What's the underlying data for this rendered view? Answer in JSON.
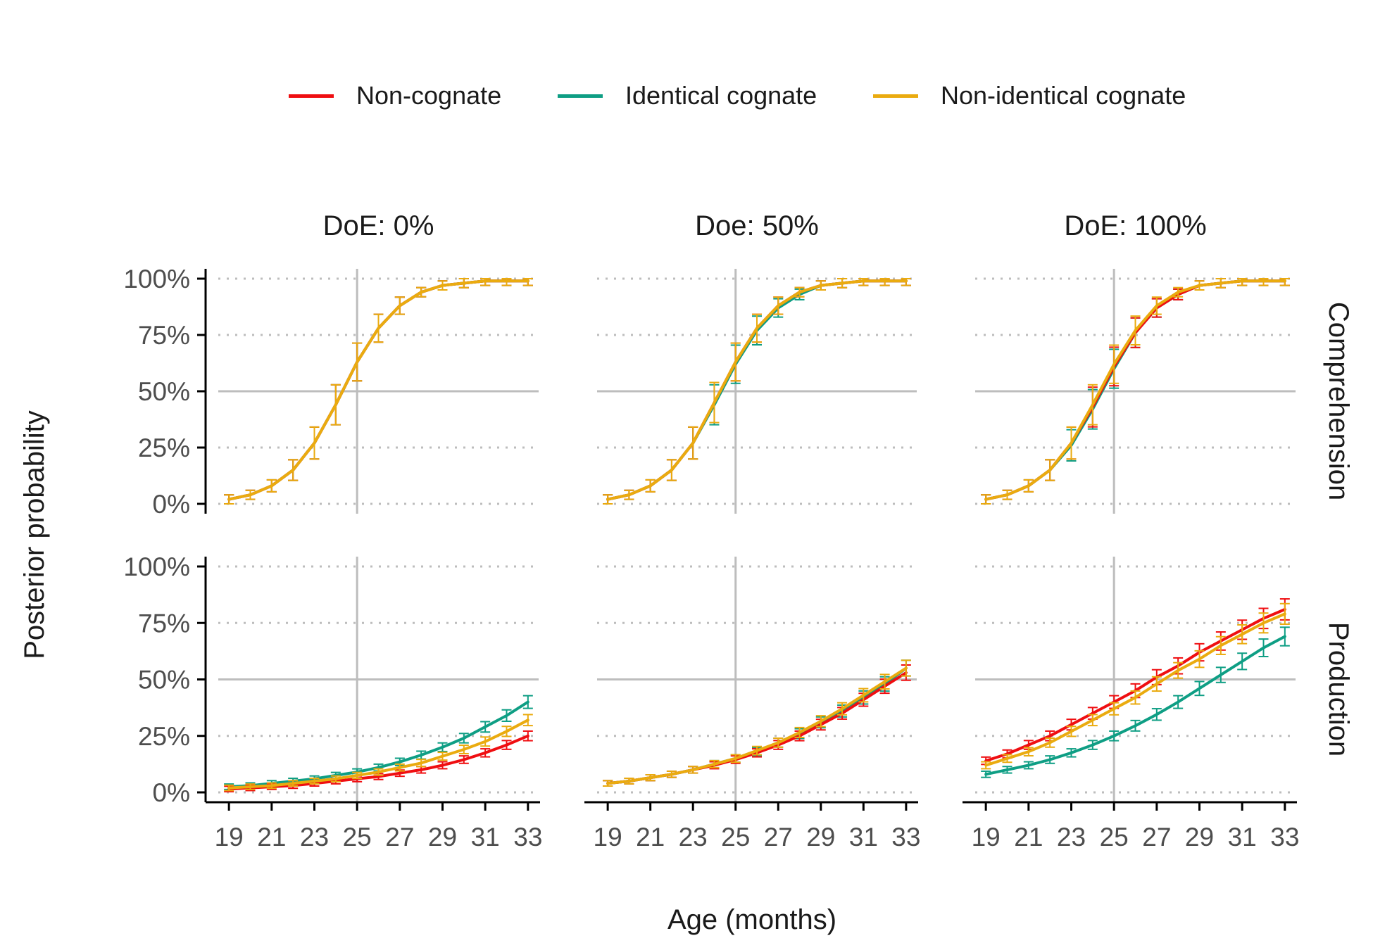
{
  "chart_data": {
    "type": "line",
    "legend": [
      {
        "key": "noncognate",
        "name": "Non-cognate",
        "color": "#ef0e11"
      },
      {
        "key": "identical",
        "name": "Identical cognate",
        "color": "#0e9e84"
      },
      {
        "key": "nonidentical",
        "name": "Non-identical cognate",
        "color": "#eaab0f"
      }
    ],
    "legend_placement": "top",
    "xlabel": "Age (months)",
    "ylabel": "Posterior probability",
    "x_ticks": [
      19,
      21,
      23,
      25,
      27,
      29,
      31,
      33
    ],
    "y_ticks": [
      "0%",
      "25%",
      "50%",
      "75%",
      "100%"
    ],
    "xlim": [
      18.5,
      33.5
    ],
    "ylim": [
      0,
      1
    ],
    "reference_lines": {
      "x": 25,
      "y": 0.5
    },
    "columns": [
      "DoE: 0%",
      "Doe: 50%",
      "DoE: 100%"
    ],
    "rows": [
      "Comprehension",
      "Production"
    ],
    "x": [
      19,
      20,
      21,
      22,
      23,
      24,
      25,
      26,
      27,
      28,
      29,
      30,
      31,
      32,
      33
    ],
    "panels": [
      {
        "column": "DoE: 0%",
        "row": "Comprehension",
        "series": [
          {
            "key": "noncognate",
            "values": [
              0.02,
              0.04,
              0.08,
              0.15,
              0.27,
              0.44,
              0.63,
              0.78,
              0.88,
              0.94,
              0.97,
              0.98,
              0.99,
              0.99,
              0.99
            ]
          },
          {
            "key": "identical",
            "values": [
              0.02,
              0.04,
              0.08,
              0.15,
              0.27,
              0.44,
              0.63,
              0.78,
              0.88,
              0.94,
              0.97,
              0.98,
              0.99,
              0.99,
              0.99
            ]
          },
          {
            "key": "nonidentical",
            "values": [
              0.02,
              0.04,
              0.08,
              0.15,
              0.27,
              0.44,
              0.63,
              0.78,
              0.88,
              0.94,
              0.97,
              0.98,
              0.99,
              0.99,
              0.99
            ]
          }
        ]
      },
      {
        "column": "Doe: 50%",
        "row": "Comprehension",
        "series": [
          {
            "key": "noncognate",
            "values": [
              0.02,
              0.04,
              0.08,
              0.15,
              0.27,
              0.45,
              0.63,
              0.78,
              0.88,
              0.94,
              0.97,
              0.98,
              0.99,
              0.99,
              0.99
            ]
          },
          {
            "key": "identical",
            "values": [
              0.02,
              0.04,
              0.08,
              0.15,
              0.27,
              0.44,
              0.62,
              0.77,
              0.87,
              0.93,
              0.97,
              0.98,
              0.99,
              0.99,
              0.99
            ]
          },
          {
            "key": "nonidentical",
            "values": [
              0.02,
              0.04,
              0.08,
              0.15,
              0.27,
              0.45,
              0.63,
              0.78,
              0.88,
              0.94,
              0.97,
              0.98,
              0.99,
              0.99,
              0.99
            ]
          }
        ]
      },
      {
        "column": "DoE: 100%",
        "row": "Comprehension",
        "series": [
          {
            "key": "noncognate",
            "values": [
              0.02,
              0.04,
              0.08,
              0.15,
              0.27,
              0.43,
              0.61,
              0.76,
              0.87,
              0.93,
              0.97,
              0.98,
              0.99,
              0.99,
              0.99
            ]
          },
          {
            "key": "identical",
            "values": [
              0.02,
              0.04,
              0.08,
              0.15,
              0.26,
              0.42,
              0.6,
              0.76,
              0.87,
              0.93,
              0.97,
              0.98,
              0.99,
              0.99,
              0.99
            ]
          },
          {
            "key": "nonidentical",
            "values": [
              0.02,
              0.04,
              0.08,
              0.15,
              0.27,
              0.44,
              0.62,
              0.77,
              0.88,
              0.94,
              0.97,
              0.98,
              0.99,
              0.99,
              0.99
            ]
          }
        ]
      },
      {
        "column": "DoE: 0%",
        "row": "Production",
        "series": [
          {
            "key": "noncognate",
            "values": [
              0.015,
              0.02,
              0.025,
              0.03,
              0.04,
              0.05,
              0.06,
              0.07,
              0.085,
              0.1,
              0.12,
              0.145,
              0.175,
              0.21,
              0.25
            ]
          },
          {
            "key": "identical",
            "values": [
              0.025,
              0.03,
              0.04,
              0.05,
              0.06,
              0.075,
              0.09,
              0.11,
              0.135,
              0.165,
              0.2,
              0.24,
              0.29,
              0.34,
              0.4
            ]
          },
          {
            "key": "nonidentical",
            "values": [
              0.02,
              0.025,
              0.03,
              0.04,
              0.05,
              0.06,
              0.075,
              0.09,
              0.11,
              0.13,
              0.16,
              0.19,
              0.225,
              0.27,
              0.32
            ]
          }
        ]
      },
      {
        "column": "Doe: 50%",
        "row": "Production",
        "series": [
          {
            "key": "noncognate",
            "values": [
              0.04,
              0.05,
              0.065,
              0.08,
              0.1,
              0.12,
              0.145,
              0.175,
              0.21,
              0.25,
              0.3,
              0.35,
              0.41,
              0.47,
              0.53
            ]
          },
          {
            "key": "identical",
            "values": [
              0.04,
              0.05,
              0.065,
              0.08,
              0.1,
              0.125,
              0.15,
              0.18,
              0.22,
              0.26,
              0.31,
              0.36,
              0.42,
              0.48,
              0.55
            ]
          },
          {
            "key": "nonidentical",
            "values": [
              0.04,
              0.05,
              0.065,
              0.08,
              0.1,
              0.125,
              0.15,
              0.185,
              0.22,
              0.265,
              0.315,
              0.37,
              0.43,
              0.49,
              0.55
            ]
          }
        ]
      },
      {
        "column": "DoE: 100%",
        "row": "Production",
        "series": [
          {
            "key": "noncognate",
            "values": [
              0.14,
              0.17,
              0.21,
              0.25,
              0.3,
              0.35,
              0.4,
              0.45,
              0.51,
              0.56,
              0.62,
              0.67,
              0.72,
              0.77,
              0.81
            ]
          },
          {
            "key": "identical",
            "values": [
              0.08,
              0.1,
              0.12,
              0.145,
              0.175,
              0.21,
              0.25,
              0.295,
              0.345,
              0.4,
              0.46,
              0.52,
              0.58,
              0.64,
              0.69
            ]
          },
          {
            "key": "nonidentical",
            "values": [
              0.12,
              0.15,
              0.18,
              0.22,
              0.27,
              0.32,
              0.37,
              0.42,
              0.48,
              0.54,
              0.59,
              0.65,
              0.7,
              0.75,
              0.79
            ]
          }
        ]
      }
    ]
  }
}
